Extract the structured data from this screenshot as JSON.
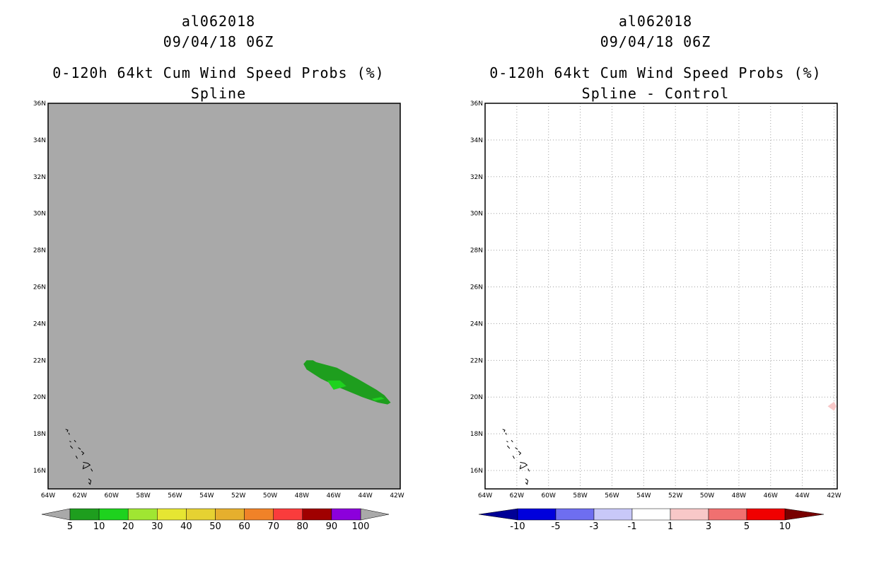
{
  "chart_data": [
    {
      "type": "heatmap",
      "title_lines": [
        "al062018",
        "09/04/18 06Z",
        "0-120h 64kt Cum Wind Speed Probs (%)",
        "Spline"
      ],
      "x_ticks": [
        "64W",
        "62W",
        "60W",
        "58W",
        "56W",
        "54W",
        "52W",
        "50W",
        "48W",
        "46W",
        "44W",
        "42W"
      ],
      "y_ticks": [
        "16N",
        "18N",
        "20N",
        "22N",
        "24N",
        "26N",
        "28N",
        "30N",
        "32N",
        "34N",
        "36N"
      ],
      "x_range": [
        -64,
        -41.8
      ],
      "y_range": [
        15,
        36
      ],
      "grid": false,
      "background_color": "#a9a9a9",
      "colorbar": {
        "labels": [
          "5",
          "10",
          "20",
          "30",
          "40",
          "50",
          "60",
          "70",
          "80",
          "90",
          "100"
        ],
        "colors": [
          "#1e9e1e",
          "#1ed21e",
          "#a0e632",
          "#e6e632",
          "#e6d232",
          "#e6af2d",
          "#f08228",
          "#fa3c3c",
          "#a00000",
          "#8c00dc"
        ],
        "end_colors": [
          "#a9a9a9",
          "#a9a9a9"
        ]
      },
      "contours": [
        {
          "level": "5-10",
          "color": "#1e9e1e",
          "points": [
            [
              -47.9,
              21.8
            ],
            [
              -47.7,
              22
            ],
            [
              -47.3,
              22
            ],
            [
              -47.1,
              21.9
            ],
            [
              -45.8,
              21.6
            ],
            [
              -44.5,
              21
            ],
            [
              -43.3,
              20.4
            ],
            [
              -42.8,
              20.1
            ],
            [
              -42.4,
              19.7
            ],
            [
              -42.6,
              19.6
            ],
            [
              -43.2,
              19.7
            ],
            [
              -44.2,
              20
            ],
            [
              -45.6,
              20.5
            ],
            [
              -46.8,
              21
            ],
            [
              -47.7,
              21.5
            ]
          ]
        },
        {
          "level": "10-20",
          "color": "#1ed21e",
          "points": [
            [
              -46.4,
              20.9
            ],
            [
              -45.6,
              20.9
            ],
            [
              -45.2,
              20.6
            ],
            [
              -46,
              20.4
            ]
          ]
        },
        {
          "level": "10-20",
          "color": "#1ed21e",
          "points": [
            [
              -43.6,
              19.9
            ],
            [
              -43,
              20
            ],
            [
              -42.8,
              19.9
            ],
            [
              -43.4,
              19.8
            ]
          ]
        }
      ],
      "annotations": []
    },
    {
      "type": "heatmap",
      "title_lines": [
        "al062018",
        "09/04/18 06Z",
        "0-120h 64kt Cum Wind Speed Probs (%)",
        "Spline - Control"
      ],
      "x_ticks": [
        "64W",
        "62W",
        "60W",
        "58W",
        "56W",
        "54W",
        "52W",
        "50W",
        "48W",
        "46W",
        "44W",
        "42W"
      ],
      "y_ticks": [
        "16N",
        "18N",
        "20N",
        "22N",
        "24N",
        "26N",
        "28N",
        "30N",
        "32N",
        "34N",
        "36N"
      ],
      "x_range": [
        -64,
        -41.8
      ],
      "y_range": [
        15,
        36
      ],
      "grid": true,
      "background_color": "#ffffff",
      "colorbar": {
        "labels": [
          "-10",
          "-5",
          "-3",
          "-1",
          "1",
          "3",
          "5",
          "10"
        ],
        "colors": [
          "#0000dc",
          "#6e6ef0",
          "#c8c8f8",
          "#ffffff",
          "#f8c8c8",
          "#f07070",
          "#f00000"
        ],
        "end_colors": [
          "#000096",
          "#780000"
        ]
      },
      "contours": [
        {
          "level": "1-3",
          "color": "#f8c8c8",
          "points": [
            [
              -42.4,
              19.5
            ],
            [
              -42,
              19.75
            ],
            [
              -41.85,
              19.5
            ],
            [
              -42,
              19.25
            ]
          ]
        }
      ],
      "annotations": []
    }
  ]
}
